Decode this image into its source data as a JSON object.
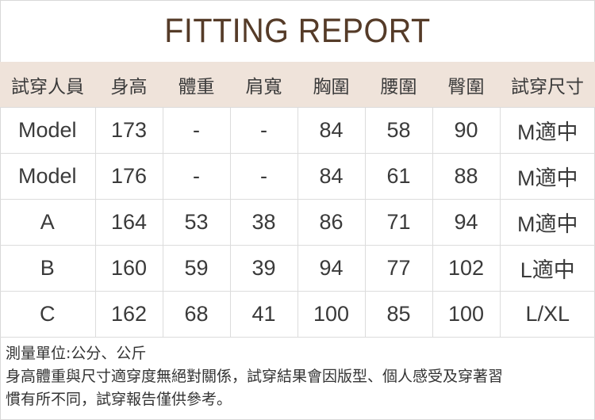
{
  "title": "FITTING REPORT",
  "header_color": "#efe3da",
  "title_color": "#553b28",
  "columns": [
    "試穿人員",
    "身高",
    "體重",
    "肩寬",
    "胸圍",
    "腰圍",
    "臀圍",
    "試穿尺寸"
  ],
  "rows": [
    [
      "Model",
      "173",
      "-",
      "-",
      "84",
      "58",
      "90",
      "M適中"
    ],
    [
      "Model",
      "176",
      "-",
      "-",
      "84",
      "61",
      "88",
      "M適中"
    ],
    [
      "A",
      "164",
      "53",
      "38",
      "86",
      "71",
      "94",
      "M適中"
    ],
    [
      "B",
      "160",
      "59",
      "39",
      "94",
      "77",
      "102",
      "L適中"
    ],
    [
      "C",
      "162",
      "68",
      "41",
      "100",
      "85",
      "100",
      "L/XL"
    ]
  ],
  "notes": [
    "測量單位:公分、公斤",
    "身高體重與尺寸適穿度無絕對關係，試穿結果會因版型、個人感受及穿著習",
    "慣有所不同，試穿報告僅供參考。"
  ]
}
